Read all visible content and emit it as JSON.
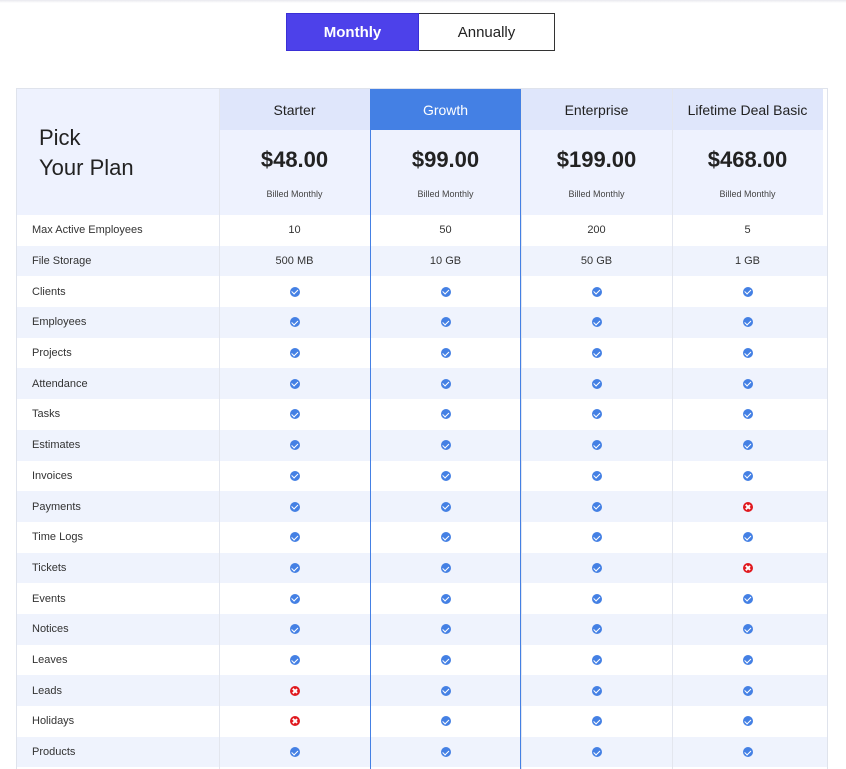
{
  "billing_toggle": {
    "monthly_label": "Monthly",
    "annually_label": "Annually",
    "selected": "Monthly"
  },
  "pick_heading": [
    "Pick",
    "Your Plan"
  ],
  "plans": [
    {
      "name": "Starter",
      "price": "$48.00",
      "billed": "Billed Monthly"
    },
    {
      "name": "Growth",
      "price": "$99.00",
      "billed": "Billed Monthly"
    },
    {
      "name": "Enterprise",
      "price": "$199.00",
      "billed": "Billed Monthly"
    },
    {
      "name": "Lifetime Deal Basic",
      "price": "$468.00",
      "billed": "Billed Monthly"
    }
  ],
  "features": [
    {
      "label": "Max Active Employees",
      "values": [
        "10",
        "50",
        "200",
        "5"
      ]
    },
    {
      "label": "File Storage",
      "values": [
        "500 MB",
        "10 GB",
        "50 GB",
        "1 GB"
      ]
    },
    {
      "label": "Clients",
      "values": [
        "check",
        "check",
        "check",
        "check"
      ]
    },
    {
      "label": "Employees",
      "values": [
        "check",
        "check",
        "check",
        "check"
      ]
    },
    {
      "label": "Projects",
      "values": [
        "check",
        "check",
        "check",
        "check"
      ]
    },
    {
      "label": "Attendance",
      "values": [
        "check",
        "check",
        "check",
        "check"
      ]
    },
    {
      "label": "Tasks",
      "values": [
        "check",
        "check",
        "check",
        "check"
      ]
    },
    {
      "label": "Estimates",
      "values": [
        "check",
        "check",
        "check",
        "check"
      ]
    },
    {
      "label": "Invoices",
      "values": [
        "check",
        "check",
        "check",
        "check"
      ]
    },
    {
      "label": "Payments",
      "values": [
        "check",
        "check",
        "check",
        "cross"
      ]
    },
    {
      "label": "Time Logs",
      "values": [
        "check",
        "check",
        "check",
        "check"
      ]
    },
    {
      "label": "Tickets",
      "values": [
        "check",
        "check",
        "check",
        "cross"
      ]
    },
    {
      "label": "Events",
      "values": [
        "check",
        "check",
        "check",
        "check"
      ]
    },
    {
      "label": "Notices",
      "values": [
        "check",
        "check",
        "check",
        "check"
      ]
    },
    {
      "label": "Leaves",
      "values": [
        "check",
        "check",
        "check",
        "check"
      ]
    },
    {
      "label": "Leads",
      "values": [
        "cross",
        "check",
        "check",
        "check"
      ]
    },
    {
      "label": "Holidays",
      "values": [
        "cross",
        "check",
        "check",
        "check"
      ]
    },
    {
      "label": "Products",
      "values": [
        "check",
        "check",
        "check",
        "check"
      ]
    }
  ],
  "colors": {
    "toggle_active": "#4d41ea",
    "featured": "#4480e4",
    "check": "#4480e4",
    "cross": "#e0191f",
    "row_alt": "#eff3fd"
  }
}
